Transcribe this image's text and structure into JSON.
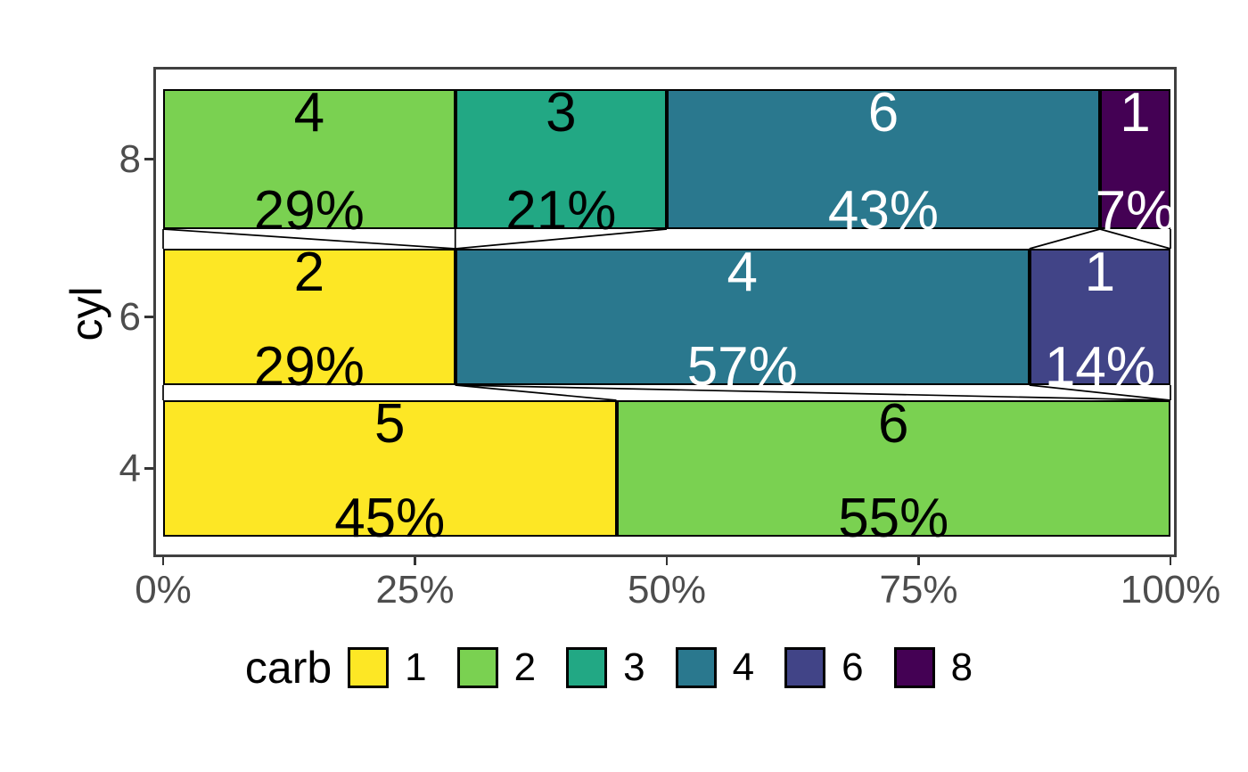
{
  "figure": {
    "background": "#ffffff",
    "panel_border_color": "#404040",
    "axis_text_color": "#4d4d4d",
    "bar_outline_color": "#000000",
    "connector_color": "#000000"
  },
  "chart_data": {
    "type": "bar",
    "subtype": "horizontal-100pct-stacked-with-connectors",
    "title": "",
    "xlabel": "",
    "ylabel": "cyl",
    "legend_title": "carb",
    "legend_position": "bottom",
    "grid": "off",
    "x_axis": {
      "range": [
        0,
        100
      ],
      "ticks": [
        {
          "label": "0%",
          "value": 0
        },
        {
          "label": "25%",
          "value": 25
        },
        {
          "label": "50%",
          "value": 50
        },
        {
          "label": "75%",
          "value": 75
        },
        {
          "label": "100%",
          "value": 100
        }
      ]
    },
    "y_axis": {
      "categories": [
        "8",
        "6",
        "4"
      ]
    },
    "carb_levels": [
      "1",
      "2",
      "3",
      "4",
      "6",
      "8"
    ],
    "colors": {
      "1": "#FDE725",
      "2": "#7AD151",
      "3": "#22A884",
      "4": "#2A788E",
      "6": "#414487",
      "8": "#440154"
    },
    "rows": [
      {
        "cyl": "8",
        "segments": [
          {
            "carb": "2",
            "count": "4",
            "pct": 29,
            "label_color": "#000000"
          },
          {
            "carb": "3",
            "count": "3",
            "pct": 21,
            "label_color": "#000000"
          },
          {
            "carb": "4",
            "count": "6",
            "pct": 43,
            "label_color": "#ffffff"
          },
          {
            "carb": "8",
            "count": "1",
            "pct": 7,
            "label_color": "#ffffff"
          }
        ]
      },
      {
        "cyl": "6",
        "segments": [
          {
            "carb": "1",
            "count": "2",
            "pct": 29,
            "label_color": "#000000"
          },
          {
            "carb": "4",
            "count": "4",
            "pct": 57,
            "label_color": "#ffffff"
          },
          {
            "carb": "6",
            "count": "1",
            "pct": 14,
            "label_color": "#ffffff"
          }
        ]
      },
      {
        "cyl": "4",
        "segments": [
          {
            "carb": "1",
            "count": "5",
            "pct": 45,
            "label_color": "#000000"
          },
          {
            "carb": "2",
            "count": "6",
            "pct": 55,
            "label_color": "#000000"
          }
        ]
      }
    ]
  }
}
